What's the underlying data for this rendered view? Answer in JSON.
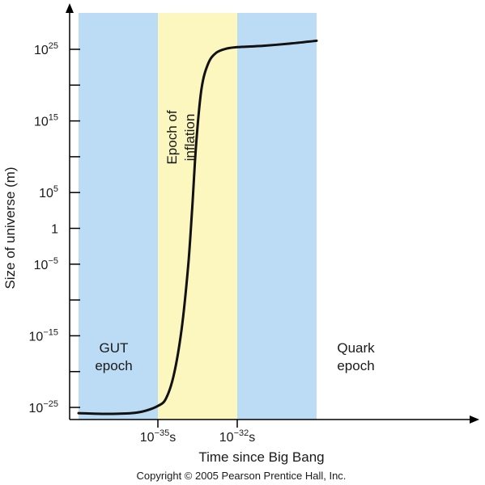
{
  "chart_data": {
    "type": "line",
    "title": "",
    "xlabel": "Time since Big Bang",
    "ylabel": "Size of universe (m)",
    "y_scale": "log",
    "y_unit": "m",
    "x_unit": "s",
    "grid": false,
    "xlim_log10_s": [
      -38,
      -29
    ],
    "ylim_log10_m": [
      -27,
      30
    ],
    "x_ticks": [
      {
        "base": "10",
        "exp": "−35",
        "unit": "s",
        "log10": -35
      },
      {
        "base": "10",
        "exp": "−32",
        "unit": "s",
        "log10": -32
      }
    ],
    "y_ticks": [
      {
        "base": "10",
        "exp": "25",
        "log10": 25
      },
      {
        "base": "10",
        "exp": "15",
        "log10": 15
      },
      {
        "base": "10",
        "exp": "5",
        "log10": 5
      },
      {
        "base": "1",
        "exp": "",
        "log10": 0
      },
      {
        "base": "10",
        "exp": "−5",
        "log10": -5
      },
      {
        "base": "10",
        "exp": "−15",
        "log10": -15
      },
      {
        "base": "10",
        "exp": "−25",
        "log10": -25
      }
    ],
    "y_minor_ticks_log10": [
      20,
      10,
      -10,
      -20
    ],
    "regions": [
      {
        "name": "GUT epoch",
        "lines": [
          "GUT",
          "epoch"
        ],
        "x_from": -38,
        "x_to": -35,
        "color": "#bcdcf5"
      },
      {
        "name": "Epoch of inflation",
        "lines": [
          "Epoch of",
          "inflation"
        ],
        "x_from": -35,
        "x_to": -32,
        "color": "#fbf7bf"
      },
      {
        "name": "Quark epoch",
        "lines": [
          "Quark",
          "epoch"
        ],
        "x_from": -32,
        "x_to": -29,
        "color": "#bcdcf5"
      }
    ],
    "series": [
      {
        "color": "#111111",
        "points": [
          {
            "x": -38.0,
            "y": -25.8
          },
          {
            "x": -37.0,
            "y": -25.9
          },
          {
            "x": -36.0,
            "y": -25.8
          },
          {
            "x": -35.5,
            "y": -25.5
          },
          {
            "x": -35.0,
            "y": -24.8
          },
          {
            "x": -34.7,
            "y": -23.8
          },
          {
            "x": -34.4,
            "y": -20.5
          },
          {
            "x": -34.1,
            "y": -14.0
          },
          {
            "x": -33.85,
            "y": -5.0
          },
          {
            "x": -33.7,
            "y": 3.0
          },
          {
            "x": -33.55,
            "y": 12.0
          },
          {
            "x": -33.35,
            "y": 19.5
          },
          {
            "x": -33.1,
            "y": 23.0
          },
          {
            "x": -32.8,
            "y": 24.5
          },
          {
            "x": -32.4,
            "y": 25.1
          },
          {
            "x": -32.0,
            "y": 25.3
          },
          {
            "x": -31.0,
            "y": 25.5
          },
          {
            "x": -30.0,
            "y": 25.8
          },
          {
            "x": -29.0,
            "y": 26.2
          }
        ]
      }
    ]
  },
  "copyright": "Copyright © 2005 Pearson Prentice Hall, Inc."
}
